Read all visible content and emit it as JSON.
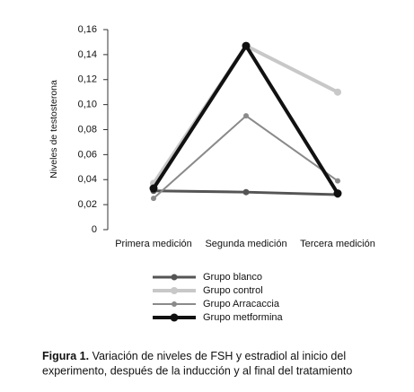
{
  "chart_data": {
    "type": "line",
    "y_label": "Niveles de testosterona",
    "categories": [
      "Primera medición",
      "Segunda medición",
      "Tercera medición"
    ],
    "ylim": [
      0,
      0.16
    ],
    "yticks": [
      0,
      {
        "value": 0.02,
        "label": "0,02"
      },
      {
        "value": 0.04,
        "label": "0,04"
      },
      {
        "value": 0.06,
        "label": "0,06"
      },
      {
        "value": 0.08,
        "label": "0,08"
      },
      {
        "value": 0.1,
        "label": "0,10"
      },
      {
        "value": 0.12,
        "label": "0,12"
      },
      {
        "value": 0.14,
        "label": "0,14"
      },
      {
        "value": 0.16,
        "label": "0,16"
      }
    ],
    "series": [
      {
        "name": "Grupo blanco",
        "color": "#555555",
        "values": [
          0.031,
          0.03,
          0.028
        ]
      },
      {
        "name": "Grupo control",
        "color": "#c8c8c8",
        "values": [
          0.037,
          0.147,
          0.11
        ]
      },
      {
        "name": "Grupo Arracaccia",
        "color": "#8a8a8a",
        "values": [
          0.025,
          0.091,
          0.039
        ]
      },
      {
        "name": "Grupo metformina",
        "color": "#111111",
        "values": [
          0.033,
          0.147,
          0.029
        ]
      }
    ]
  },
  "caption": {
    "label": "Figura 1.",
    "lines": [
      " Variación de niveles de FSH y estradiol al inicio del",
      "experimento, después de la inducción y al final del tratamiento"
    ]
  }
}
